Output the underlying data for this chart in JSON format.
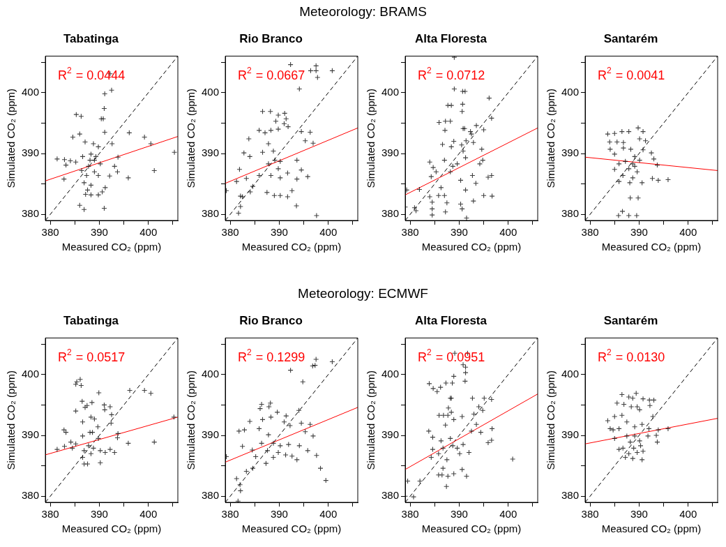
{
  "chart_data": [
    {
      "type": "other",
      "title": "Meteorology: BRAMS"
    },
    {
      "type": "scatter",
      "title": "Tabatinga",
      "xlabel": "Measured CO₂ (ppm)",
      "ylabel": "Simulated CO₂ (ppm)",
      "xlim": [
        379,
        406
      ],
      "ylim": [
        379,
        406
      ],
      "xticks": [
        380,
        {
          "value": 385,
          "label": null
        },
        390,
        {
          "value": 395,
          "label": null
        },
        400,
        {
          "value": 405,
          "label": null
        }
      ],
      "yticks": [
        380,
        {
          "value": 385,
          "label": null
        },
        390,
        {
          "value": 395,
          "label": null
        },
        400,
        {
          "value": 405,
          "label": null
        }
      ],
      "annotations": [
        "R$^{2}$ = 0.0444"
      ],
      "series": [
        {
          "type": "scatter",
          "marker": "cross",
          "color": "#000000",
          "x": [
            392.2,
            392.5,
            391.1,
            391.0,
            390.4,
            390.8,
            385.3,
            386.3,
            391.1,
            384.6,
            386.0,
            387.1,
            392.6,
            396.1,
            399.2,
            400.5,
            405.3,
            381.4,
            382.9,
            383.2,
            384.1,
            385.2,
            382.8,
            388.8,
            389.8,
            389.0,
            388.3,
            387.8,
            387.4,
            386.9,
            388.3,
            389.8,
            390.2,
            386.4,
            393.8,
            393.1,
            393.7,
            392.1,
            395.9,
            401.2,
            391.2,
            390.6,
            388.3,
            387.2,
            389.8,
            386.0,
            386.9,
            391.0,
            387.6,
            389.0,
            388.1,
            389.3,
            386.6
          ],
          "values": [
            403.1,
            400.4,
            399.8,
            397.4,
            395.7,
            395.7,
            396.4,
            396.1,
            393.5,
            392.7,
            393.2,
            391.9,
            391.6,
            393.4,
            392.7,
            391.6,
            390.2,
            389.1,
            389.0,
            388.1,
            388.8,
            388.6,
            385.8,
            391.6,
            391.1,
            388.9,
            389.9,
            387.9,
            386.4,
            385.2,
            384.8,
            386.4,
            388.3,
            387.2,
            389.4,
            387.9,
            387.0,
            386.3,
            386.0,
            387.2,
            384.4,
            383.7,
            383.2,
            383.3,
            383.2,
            381.5,
            380.8,
            381.0,
            384.0,
            387.0,
            388.9,
            389.5,
            389.5
          ]
        },
        {
          "type": "line",
          "color": "#ff0000",
          "x": [
            379,
            406
          ],
          "values": [
            385.5,
            392.8
          ]
        },
        {
          "type": "line",
          "color": "#000000",
          "line_style": "dashed",
          "x": [
            379,
            406
          ],
          "values": [
            379,
            406
          ]
        }
      ]
    },
    {
      "type": "scatter",
      "title": "Rio Branco",
      "xlabel": "Measured CO₂ (ppm)",
      "ylabel": "Simulated CO₂ (ppm)",
      "xlim": [
        379,
        406
      ],
      "ylim": [
        379,
        406
      ],
      "xticks": [
        380,
        {
          "value": 385,
          "label": null
        },
        390,
        {
          "value": 395,
          "label": null
        },
        400,
        {
          "value": 405,
          "label": null
        }
      ],
      "yticks": [
        380,
        {
          "value": 385,
          "label": null
        },
        390,
        {
          "value": 395,
          "label": null
        },
        400,
        {
          "value": 405,
          "label": null
        }
      ],
      "annotations": [
        "R$^{2}$ = 0.0667"
      ],
      "series": [
        {
          "type": "scatter",
          "marker": "cross",
          "color": "#000000",
          "x": [
            392.3,
            397.5,
            396.4,
            397.5,
            397.8,
            400.8,
            394.1,
            386.6,
            388.2,
            389.8,
            391.1,
            391.4,
            389.3,
            391.0,
            391.8,
            385.9,
            387.1,
            388.3,
            389.8,
            383.8,
            394.5,
            396.3,
            395.3,
            396.9,
            382.8,
            384.0,
            386.6,
            387.8,
            388.8,
            389.1,
            389.8,
            387.8,
            388.3,
            390.2,
            391.7,
            393.6,
            394.5,
            395.8,
            393.6,
            392.6,
            391.7,
            390.2,
            389.0,
            387.5,
            393.5,
            397.6,
            381.9,
            381.3,
            383.3,
            384.6,
            384.1,
            382.1,
            382.5,
            382.1,
            381.7,
            379.2,
            390.2,
            385.9
          ],
          "values": [
            404.6,
            404.4,
            403.6,
            403.6,
            402.5,
            403.6,
            400.6,
            396.9,
            396.9,
            396.3,
            396.6,
            395.7,
            395.3,
            394.9,
            394.4,
            393.8,
            393.4,
            393.8,
            394.0,
            392.4,
            393.6,
            393.5,
            392.1,
            391.7,
            390.1,
            389.5,
            390.2,
            391.6,
            390.4,
            388.9,
            387.5,
            388.3,
            386.4,
            386.0,
            386.8,
            388.9,
            387.3,
            386.2,
            385.8,
            383.9,
            382.9,
            383.1,
            383.1,
            383.6,
            381.4,
            379.8,
            387.4,
            385.4,
            385.9,
            384.6,
            383.7,
            383.0,
            382.9,
            381.3,
            380.2,
            383.9,
            388.7,
            386.4
          ]
        },
        {
          "type": "line",
          "color": "#ff0000",
          "x": [
            379,
            406
          ],
          "values": [
            385.1,
            394.2
          ]
        },
        {
          "type": "line",
          "color": "#000000",
          "line_style": "dashed",
          "x": [
            379,
            406
          ],
          "values": [
            379,
            406
          ]
        }
      ]
    },
    {
      "type": "scatter",
      "title": "Alta Floresta",
      "xlabel": "Measured CO₂ (ppm)",
      "ylabel": "Simulated CO₂ (ppm)",
      "xlim": [
        379,
        406
      ],
      "ylim": [
        379,
        406
      ],
      "xticks": [
        380,
        {
          "value": 385,
          "label": null
        },
        390,
        {
          "value": 395,
          "label": null
        },
        400,
        {
          "value": 405,
          "label": null
        }
      ],
      "yticks": [
        380,
        {
          "value": 385,
          "label": null
        },
        390,
        {
          "value": 395,
          "label": null
        },
        400,
        {
          "value": 405,
          "label": null
        }
      ],
      "annotations": [
        "R$^{2}$ = 0.0712"
      ],
      "series": [
        {
          "type": "scatter",
          "marker": "cross",
          "color": "#000000",
          "x": [
            389.0,
            389.0,
            390.7,
            391.2,
            396.1,
            387.7,
            388.4,
            390.7,
            390.6,
            385.9,
            387.2,
            388.2,
            387.1,
            390.8,
            391.1,
            392.3,
            393.5,
            396.6,
            395.0,
            392.5,
            392.9,
            391.4,
            388.9,
            386.6,
            388.4,
            390.5,
            390.8,
            394.6,
            391.3,
            394.8,
            394.2,
            384.0,
            384.7,
            387.0,
            388.7,
            389.6,
            388.2,
            390.3,
            391.3,
            392.7,
            393.4,
            395.9,
            396.6,
            395.0,
            396.7,
            386.3,
            387.0,
            385.8,
            384.0,
            384.5,
            384.5,
            384.5,
            387.2,
            390.3,
            390.6,
            391.5,
            392.9,
            387.5,
            380.9,
            381.2,
            379.3,
            381.9,
            379.0,
            384.3,
            385.3
          ],
          "values": [
            405.8,
            400.6,
            400.2,
            400.2,
            399.1,
            397.9,
            397.9,
            398.1,
            396.9,
            395.1,
            395.3,
            395.3,
            393.8,
            394.1,
            394.1,
            393.6,
            394.6,
            395.8,
            393.9,
            393.2,
            391.8,
            392.1,
            392.0,
            391.5,
            391.1,
            391.4,
            390.4,
            390.7,
            389.3,
            388.9,
            388.3,
            388.6,
            387.7,
            388.9,
            387.9,
            388.3,
            387.0,
            385.6,
            384.0,
            386.4,
            385.1,
            386.1,
            386.4,
            383.1,
            383.0,
            384.4,
            383.1,
            383.1,
            382.9,
            382.0,
            380.9,
            379.9,
            380.4,
            381.7,
            380.9,
            379.4,
            382.2,
            381.9,
            381.1,
            380.6,
            384.0,
            384.1,
            381.2,
            386.2,
            387.0
          ]
        },
        {
          "type": "line",
          "color": "#ff0000",
          "x": [
            379,
            406
          ],
          "values": [
            383.2,
            394.2
          ]
        },
        {
          "type": "line",
          "color": "#000000",
          "line_style": "dashed",
          "x": [
            379,
            406
          ],
          "values": [
            379,
            406
          ]
        }
      ]
    },
    {
      "type": "scatter",
      "title": "Santarém",
      "xlabel": "Measured CO₂ (ppm)",
      "ylabel": "Simulated CO₂ (ppm)",
      "xlim": [
        379,
        406
      ],
      "ylim": [
        379,
        406
      ],
      "xticks": [
        380,
        {
          "value": 385,
          "label": null
        },
        390,
        {
          "value": 395,
          "label": null
        },
        400,
        {
          "value": 405,
          "label": null
        }
      ],
      "yticks": [
        380,
        {
          "value": 385,
          "label": null
        },
        390,
        {
          "value": 395,
          "label": null
        },
        400,
        {
          "value": 405,
          "label": null
        }
      ],
      "annotations": [
        "R$^{2}$ = 0.0041"
      ],
      "series": [
        {
          "type": "scatter",
          "marker": "cross",
          "color": "#000000",
          "x": [
            383.6,
            385.0,
            386.5,
            387.9,
            389.8,
            390.8,
            384.0,
            384.1,
            385.5,
            386.8,
            390.1,
            391.3,
            385.0,
            385.9,
            386.8,
            388.3,
            389.1,
            390.8,
            392.5,
            393.0,
            388.7,
            387.9,
            386.7,
            388.7,
            389.6,
            390.6,
            385.0,
            385.9,
            388.1,
            393.7,
            392.7,
            393.9,
            395.9,
            388.2,
            389.8,
            385.8,
            386.6,
            387.9,
            389.5,
            387.2,
            389.1,
            390.1
          ],
          "values": [
            393.2,
            393.3,
            393.6,
            393.6,
            394.2,
            393.6,
            391.9,
            390.7,
            391.9,
            391.8,
            392.4,
            392.1,
            389.9,
            388.3,
            390.9,
            390.7,
            389.5,
            390.6,
            390.1,
            389.1,
            388.3,
            387.5,
            386.4,
            386.0,
            387.0,
            385.2,
            387.4,
            385.4,
            385.2,
            388.1,
            385.9,
            385.6,
            385.7,
            382.7,
            382.7,
            379.8,
            380.5,
            379.8,
            379.8,
            388.7,
            387.9,
            388.9
          ]
        },
        {
          "type": "line",
          "color": "#ff0000",
          "x": [
            379,
            406
          ],
          "values": [
            389.4,
            387.2
          ]
        },
        {
          "type": "line",
          "color": "#000000",
          "line_style": "dashed",
          "x": [
            379,
            406
          ],
          "values": [
            379,
            406
          ]
        }
      ]
    },
    {
      "type": "other",
      "title": "Meteorology: ECMWF"
    },
    {
      "type": "scatter",
      "title": "Tabatinga",
      "xlabel": "Measured CO₂ (ppm)",
      "ylabel": "Simulated CO₂ (ppm)",
      "xlim": [
        379,
        406
      ],
      "ylim": [
        379,
        406
      ],
      "xticks": [
        380,
        {
          "value": 385,
          "label": null
        },
        390,
        {
          "value": 395,
          "label": null
        },
        400,
        {
          "value": 405,
          "label": null
        }
      ],
      "yticks": [
        380,
        {
          "value": 385,
          "label": null
        },
        390,
        {
          "value": 395,
          "label": null
        },
        400,
        {
          "value": 405,
          "label": null
        }
      ],
      "annotations": [
        "R$^{2}$ = 0.0517"
      ],
      "series": [
        {
          "type": "scatter",
          "marker": "cross",
          "color": "#000000",
          "x": [
            386.1,
            385.4,
            385.2,
            386.3,
            389.9,
            396.2,
            399.2,
            400.5,
            386.5,
            388.5,
            385.2,
            387.1,
            387.5,
            391.0,
            391.1,
            392.2,
            392.5,
            388.3,
            389.0,
            386.6,
            392.4,
            389.7,
            382.8,
            383.2,
            388.1,
            388.6,
            393.8,
            393.7,
            386.6,
            389.8,
            405.2,
            381.4,
            382.9,
            384.2,
            385.2,
            395.9,
            401.2,
            387.8,
            388.8,
            386.9,
            390.2,
            391.2,
            392.2,
            393.1,
            386.6,
            388.3,
            386.9,
            387.6,
            390.2,
            384.5
          ],
          "values": [
            399.2,
            398.8,
            398.4,
            398.2,
            397.0,
            397.4,
            397.4,
            396.9,
            395.6,
            395.4,
            394.0,
            394.6,
            394.9,
            395.0,
            394.2,
            394.7,
            393.4,
            393.0,
            392.7,
            392.2,
            392.0,
            391.4,
            390.9,
            390.5,
            390.5,
            390.5,
            390.3,
            389.6,
            389.9,
            389.5,
            393.0,
            387.7,
            388.2,
            388.9,
            388.6,
            388.7,
            388.9,
            388.3,
            387.9,
            387.5,
            387.5,
            387.2,
            387.7,
            387.2,
            386.4,
            387.0,
            385.3,
            385.3,
            385.5,
            387.9
          ]
        },
        {
          "type": "line",
          "color": "#ff0000",
          "x": [
            379,
            406
          ],
          "values": [
            386.8,
            393.0
          ]
        },
        {
          "type": "line",
          "color": "#000000",
          "line_style": "dashed",
          "x": [
            379,
            406
          ],
          "values": [
            379,
            406
          ]
        }
      ]
    },
    {
      "type": "scatter",
      "title": "Rio Branco",
      "xlabel": "Measured CO₂ (ppm)",
      "ylabel": "Simulated CO₂ (ppm)",
      "xlim": [
        379,
        406
      ],
      "ylim": [
        379,
        406
      ],
      "xticks": [
        380,
        {
          "value": 385,
          "label": null
        },
        390,
        {
          "value": 395,
          "label": null
        },
        400,
        {
          "value": 405,
          "label": null
        }
      ],
      "yticks": [
        380,
        {
          "value": 385,
          "label": null
        },
        390,
        {
          "value": 395,
          "label": null
        },
        400,
        {
          "value": 405,
          "label": null
        }
      ],
      "annotations": [
        "R$^{2}$ = 0.1299"
      ],
      "series": [
        {
          "type": "scatter",
          "marker": "cross",
          "color": "#000000",
          "x": [
            397.5,
            396.8,
            397.3,
            400.8,
            392.3,
            394.8,
            386.4,
            388.2,
            386.1,
            387.9,
            389.6,
            391.4,
            394.0,
            384.0,
            386.6,
            388.3,
            391.0,
            392.2,
            394.5,
            396.3,
            395.3,
            396.9,
            381.8,
            382.9,
            382.5,
            384.5,
            385.9,
            387.8,
            388.8,
            390.2,
            391.9,
            386.4,
            387.6,
            389.8,
            391.3,
            392.6,
            393.6,
            394.1,
            395.8,
            388.8,
            397.6,
            398.4,
            399.5,
            387.3,
            385.2,
            383.3,
            384.6,
            381.3,
            382.0,
            382.1,
            381.6,
            379.2
          ],
          "values": [
            402.5,
            401.4,
            401.5,
            402.1,
            400.7,
            398.8,
            395.1,
            395.3,
            394.4,
            394.7,
            393.8,
            393.2,
            394.1,
            392.3,
            392.6,
            393.0,
            392.2,
            391.6,
            392.0,
            391.8,
            390.6,
            389.9,
            390.7,
            390.9,
            388.2,
            387.6,
            391.1,
            390.1,
            388.7,
            388.3,
            388.5,
            388.7,
            387.5,
            387.2,
            386.8,
            386.6,
            386.0,
            388.3,
            387.5,
            386.4,
            386.7,
            384.6,
            382.6,
            385.4,
            386.5,
            384.1,
            384.6,
            382.9,
            381.9,
            380.9,
            379.2,
            386.5
          ]
        },
        {
          "type": "line",
          "color": "#ff0000",
          "x": [
            379,
            406
          ],
          "values": [
            385.6,
            394.6
          ]
        },
        {
          "type": "line",
          "color": "#000000",
          "line_style": "dashed",
          "x": [
            379,
            406
          ],
          "values": [
            379,
            406
          ]
        }
      ]
    },
    {
      "type": "scatter",
      "title": "Alta Floresta",
      "xlabel": "Measured CO₂ (ppm)",
      "ylabel": "Simulated CO₂ (ppm)",
      "xlim": [
        379,
        406
      ],
      "ylim": [
        379,
        406
      ],
      "xticks": [
        380,
        {
          "value": 385,
          "label": null
        },
        390,
        {
          "value": 395,
          "label": null
        },
        400,
        {
          "value": 405,
          "label": null
        }
      ],
      "yticks": [
        380,
        {
          "value": 385,
          "label": null
        },
        390,
        {
          "value": 395,
          "label": null
        },
        400,
        {
          "value": 405,
          "label": null
        }
      ],
      "annotations": [
        "R$^{2}$ = 0.0951"
      ],
      "series": [
        {
          "type": "scatter",
          "marker": "cross",
          "color": "#000000",
          "x": [
            389.1,
            391.7,
            390.8,
            391.3,
            391.3,
            388.9,
            391.2,
            383.9,
            384.7,
            385.5,
            386.2,
            387.3,
            388.6,
            388.4,
            388.2,
            392.7,
            395.1,
            396.6,
            394.0,
            394.8,
            393.0,
            385.9,
            386.8,
            387.7,
            388.4,
            390.6,
            387.8,
            387.2,
            388.9,
            393.5,
            394.4,
            392.5,
            396.7,
            383.8,
            384.6,
            384.6,
            386.3,
            388.2,
            388.7,
            389.6,
            390.8,
            396.6,
            395.9,
            386.7,
            385.8,
            387.5,
            390.1,
            392.0,
            390.6,
            391.5,
            388.9,
            387.7,
            385.8,
            386.5,
            387.4,
            400.9,
            379.5,
            382.0,
            379.0,
            380.7,
            384.3,
            386.7
          ],
          "values": [
            403.5,
            403.5,
            401.6,
            401.2,
            400.3,
            399.7,
            398.9,
            398.5,
            397.7,
            397.2,
            397.9,
            398.6,
            398.6,
            396.1,
            396.1,
            396.1,
            396.1,
            395.9,
            394.7,
            394.1,
            393.5,
            393.3,
            393.3,
            393.3,
            393.8,
            393.1,
            394.5,
            391.7,
            392.6,
            391.8,
            390.5,
            390.7,
            391.1,
            390.7,
            389.7,
            387.7,
            389.1,
            389.5,
            388.3,
            387.9,
            388.5,
            389.2,
            388.8,
            387.9,
            387.0,
            386.0,
            387.0,
            387.2,
            384.4,
            383.3,
            383.7,
            383.3,
            383.5,
            383.5,
            381.6,
            386.1,
            382.5,
            382.5,
            380.0,
            379.9,
            386.4,
            384.6
          ]
        },
        {
          "type": "line",
          "color": "#ff0000",
          "x": [
            379,
            406
          ],
          "values": [
            384.4,
            396.8
          ]
        },
        {
          "type": "line",
          "color": "#000000",
          "line_style": "dashed",
          "x": [
            379,
            406
          ],
          "values": [
            379,
            406
          ]
        }
      ]
    },
    {
      "type": "scatter",
      "title": "Santarém",
      "xlabel": "Measured CO₂ (ppm)",
      "ylabel": "Simulated CO₂ (ppm)",
      "xlim": [
        379,
        406
      ],
      "ylim": [
        379,
        406
      ],
      "xticks": [
        380,
        {
          "value": 385,
          "label": null
        },
        390,
        {
          "value": 395,
          "label": null
        },
        400,
        {
          "value": 405,
          "label": null
        }
      ],
      "yticks": [
        380,
        {
          "value": 385,
          "label": null
        },
        390,
        {
          "value": 395,
          "label": null
        },
        400,
        {
          "value": 405,
          "label": null
        }
      ],
      "annotations": [
        "R$^{2}$ = 0.0130"
      ],
      "series": [
        {
          "type": "scatter",
          "marker": "cross",
          "color": "#000000",
          "x": [
            386.5,
            387.9,
            388.7,
            389.4,
            385.5,
            386.9,
            388.4,
            389.6,
            390.1,
            390.8,
            392.1,
            393.0,
            392.2,
            392.8,
            385.0,
            386.5,
            383.6,
            384.1,
            384.7,
            385.9,
            387.5,
            389.1,
            390.6,
            392.0,
            393.9,
            395.9,
            385.0,
            385.9,
            387.5,
            388.2,
            389.1,
            390.1,
            391.8,
            393.5,
            393.7,
            386.7,
            387.9,
            388.9,
            389.6,
            387.2,
            388.7,
            390.6,
            390.8,
            390.3
          ],
          "values": [
            396.7,
            396.3,
            396.1,
            396.9,
            395.3,
            395.1,
            394.7,
            394.7,
            394.2,
            396.0,
            395.8,
            395.8,
            394.9,
            393.1,
            393.1,
            393.3,
            392.4,
            391.1,
            390.9,
            391.1,
            392.2,
            391.4,
            391.8,
            391.1,
            390.9,
            391.1,
            389.5,
            387.7,
            389.9,
            388.9,
            389.9,
            389.1,
            389.9,
            390.0,
            388.9,
            387.9,
            387.0,
            387.9,
            387.2,
            386.4,
            386.2,
            386.0,
            387.4,
            388.3
          ]
        },
        {
          "type": "line",
          "color": "#ff0000",
          "x": [
            379,
            406
          ],
          "values": [
            388.6,
            392.8
          ]
        },
        {
          "type": "line",
          "color": "#000000",
          "line_style": "dashed",
          "x": [
            379,
            406
          ],
          "values": [
            379,
            406
          ]
        }
      ]
    }
  ]
}
